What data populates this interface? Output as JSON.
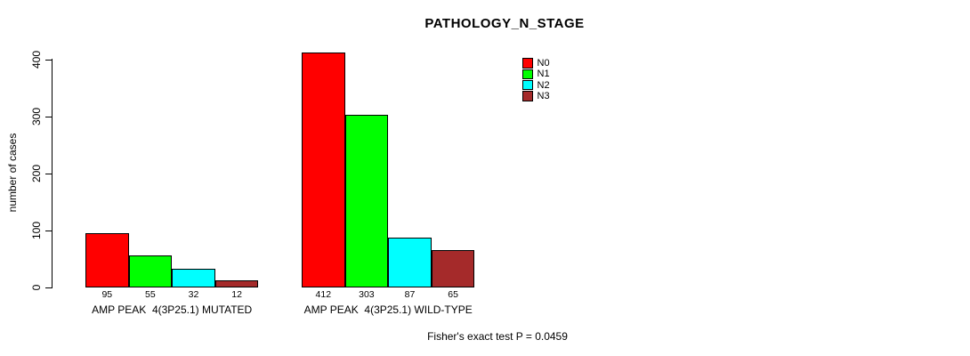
{
  "chart_data": {
    "type": "bar",
    "title": "PATHOLOGY_N_STAGE",
    "xlabel": "",
    "ylabel": "number of cases",
    "ylim": [
      0,
      400
    ],
    "yticks": [
      0,
      100,
      200,
      300,
      400
    ],
    "grid": false,
    "legend_position": "top-right-inside",
    "series_labels": [
      "N0",
      "N1",
      "N2",
      "N3"
    ],
    "colors": [
      "#FF0000",
      "#00FF00",
      "#00FFFF",
      "#A52A2A"
    ],
    "groups": [
      {
        "label": "AMP PEAK  4(3P25.1) MUTATED",
        "values": [
          95,
          55,
          32,
          12
        ]
      },
      {
        "label": "AMP PEAK  4(3P25.1) WILD-TYPE",
        "values": [
          412,
          303,
          87,
          65
        ]
      }
    ],
    "annotation": "Fisher's exact test P = 0.0459"
  }
}
